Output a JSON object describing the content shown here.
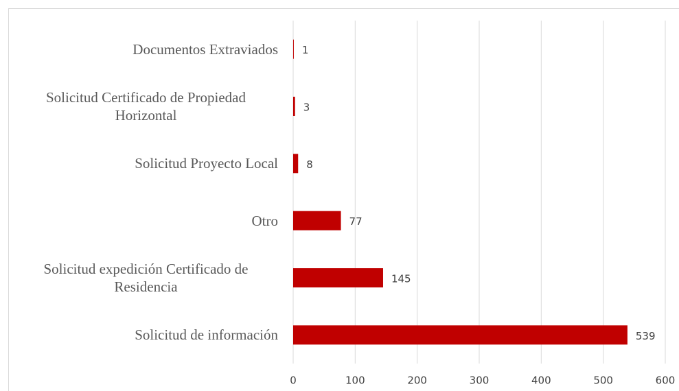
{
  "chart_data": {
    "type": "barh",
    "categories": [
      "Documentos Extraviados",
      "Solicitud Certificado de Propiedad Horizontal",
      "Solicitud Proyecto Local",
      "Otro",
      "Solicitud expedición Certificado de Residencia",
      "Solicitud de información"
    ],
    "values": [
      1,
      3,
      8,
      77,
      145,
      539
    ],
    "color": "#c00000",
    "xlim": [
      0,
      600
    ],
    "xticks": [
      0,
      100,
      200,
      300,
      400,
      500,
      600
    ],
    "grid": true
  }
}
